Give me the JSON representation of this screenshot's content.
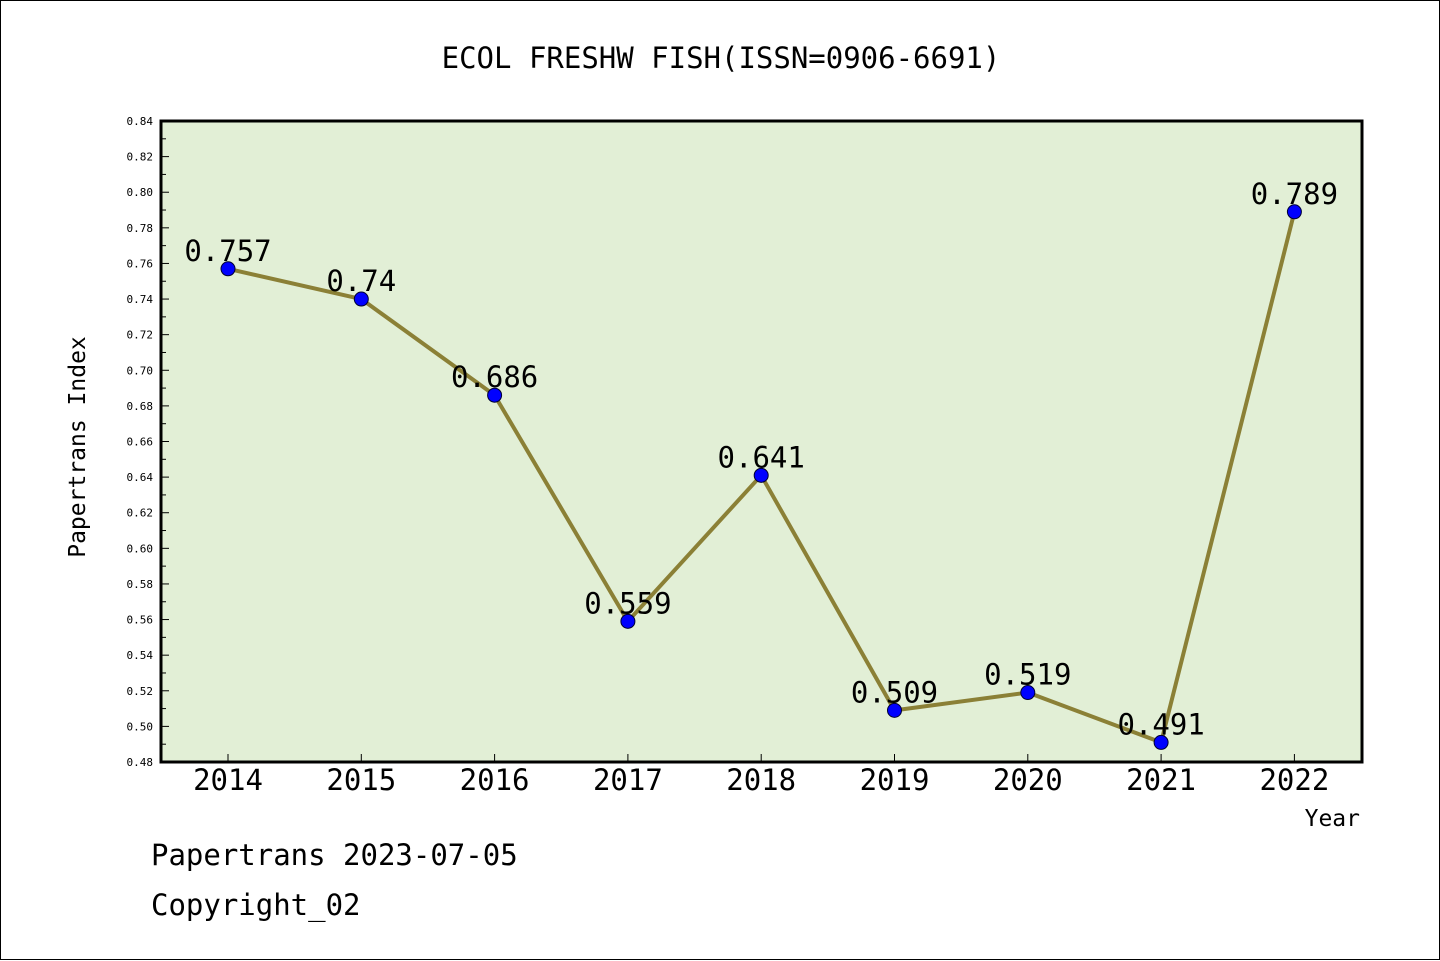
{
  "chart_data": {
    "type": "line",
    "title": "ECOL FRESHW FISH(ISSN=0906-6691)",
    "xlabel": "Year",
    "ylabel": "Papertrans Index",
    "categories": [
      "2014",
      "2015",
      "2016",
      "2017",
      "2018",
      "2019",
      "2020",
      "2021",
      "2022"
    ],
    "values": [
      0.757,
      0.74,
      0.686,
      0.559,
      0.641,
      0.509,
      0.519,
      0.491,
      0.789
    ],
    "data_labels": [
      "0.757",
      "0.74",
      "0.686",
      "0.559",
      "0.641",
      "0.509",
      "0.519",
      "0.491",
      "0.789"
    ],
    "ylim": [
      0.48,
      0.84
    ],
    "yticks": [
      "0.48",
      "0.50",
      "0.52",
      "0.54",
      "0.56",
      "0.58",
      "0.60",
      "0.62",
      "0.64",
      "0.66",
      "0.68",
      "0.70",
      "0.72",
      "0.74",
      "0.76",
      "0.78",
      "0.80",
      "0.82",
      "0.84"
    ],
    "grid": false,
    "colors": {
      "plot_background": "#e2efd6",
      "line": "#8b8036",
      "marker": "#0000ff"
    }
  },
  "footer": {
    "line1": "Papertrans 2023-07-05",
    "line2": "Copyright_02"
  }
}
